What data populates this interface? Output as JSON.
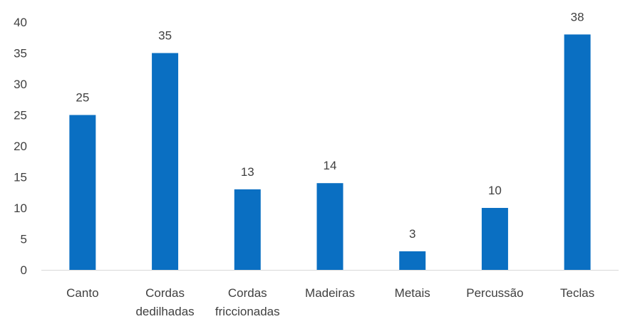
{
  "chart_data": {
    "type": "bar",
    "categories": [
      "Canto",
      "Cordas dedilhadas",
      "Cordas friccionadas",
      "Madeiras",
      "Metais",
      "Percussão",
      "Teclas"
    ],
    "category_lines": [
      [
        "Canto"
      ],
      [
        "Cordas",
        "dedilhadas"
      ],
      [
        "Cordas",
        "friccionadas"
      ],
      [
        "Madeiras"
      ],
      [
        "Metais"
      ],
      [
        "Percussão"
      ],
      [
        "Teclas"
      ]
    ],
    "values": [
      25,
      35,
      13,
      14,
      3,
      10,
      38
    ],
    "data_labels": [
      "25",
      "35",
      "13",
      "14",
      "3",
      "10",
      "38"
    ],
    "y_ticks": [
      "0",
      "5",
      "10",
      "15",
      "20",
      "25",
      "30",
      "35",
      "40"
    ],
    "ylim": [
      0,
      40
    ],
    "grid": false,
    "legend": "none",
    "bar_color": "#0a6fc2"
  }
}
